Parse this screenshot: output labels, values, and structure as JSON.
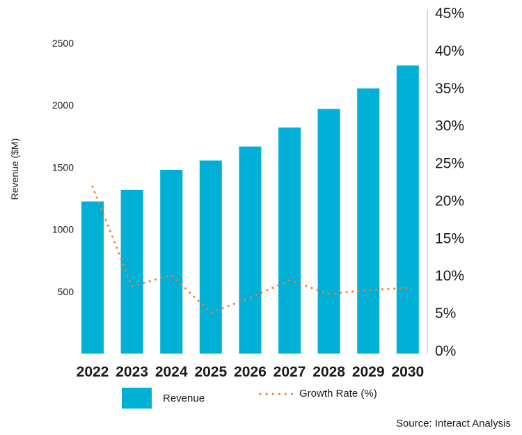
{
  "chart_data": {
    "type": "bar",
    "categories": [
      "2022",
      "2023",
      "2024",
      "2025",
      "2026",
      "2027",
      "2028",
      "2029",
      "2030"
    ],
    "series": [
      {
        "name": "Revenue",
        "type": "bar",
        "axis": "left",
        "values": [
          1225,
          1318,
          1480,
          1555,
          1667,
          1820,
          1970,
          2135,
          2320
        ]
      },
      {
        "name": "Growth Rate (%)",
        "type": "line",
        "style": "dotted",
        "axis": "right",
        "values": [
          21.8,
          8.5,
          10.0,
          5.0,
          7.0,
          9.3,
          7.5,
          8.0,
          8.3
        ]
      }
    ],
    "ylabel": "Revenue ($M)",
    "ylim": [
      0,
      2500
    ],
    "yticks": [
      "500",
      "1000",
      "1500",
      "2000",
      "2500"
    ],
    "y2lim": [
      0,
      45
    ],
    "y2ticks": [
      "0%",
      "5%",
      "10%",
      "15%",
      "20%",
      "25%",
      "30%",
      "35%",
      "40%",
      "45%"
    ],
    "legend": "bottom"
  },
  "colors": {
    "bar": "#00b0d6",
    "line": "#f07d2a",
    "axis": "#cccccc",
    "text": "#1a1a1a"
  },
  "legend": {
    "revenue_label": "Revenue",
    "growth_label": "Growth Rate (%)"
  },
  "source": "Source: Interact Analysis"
}
